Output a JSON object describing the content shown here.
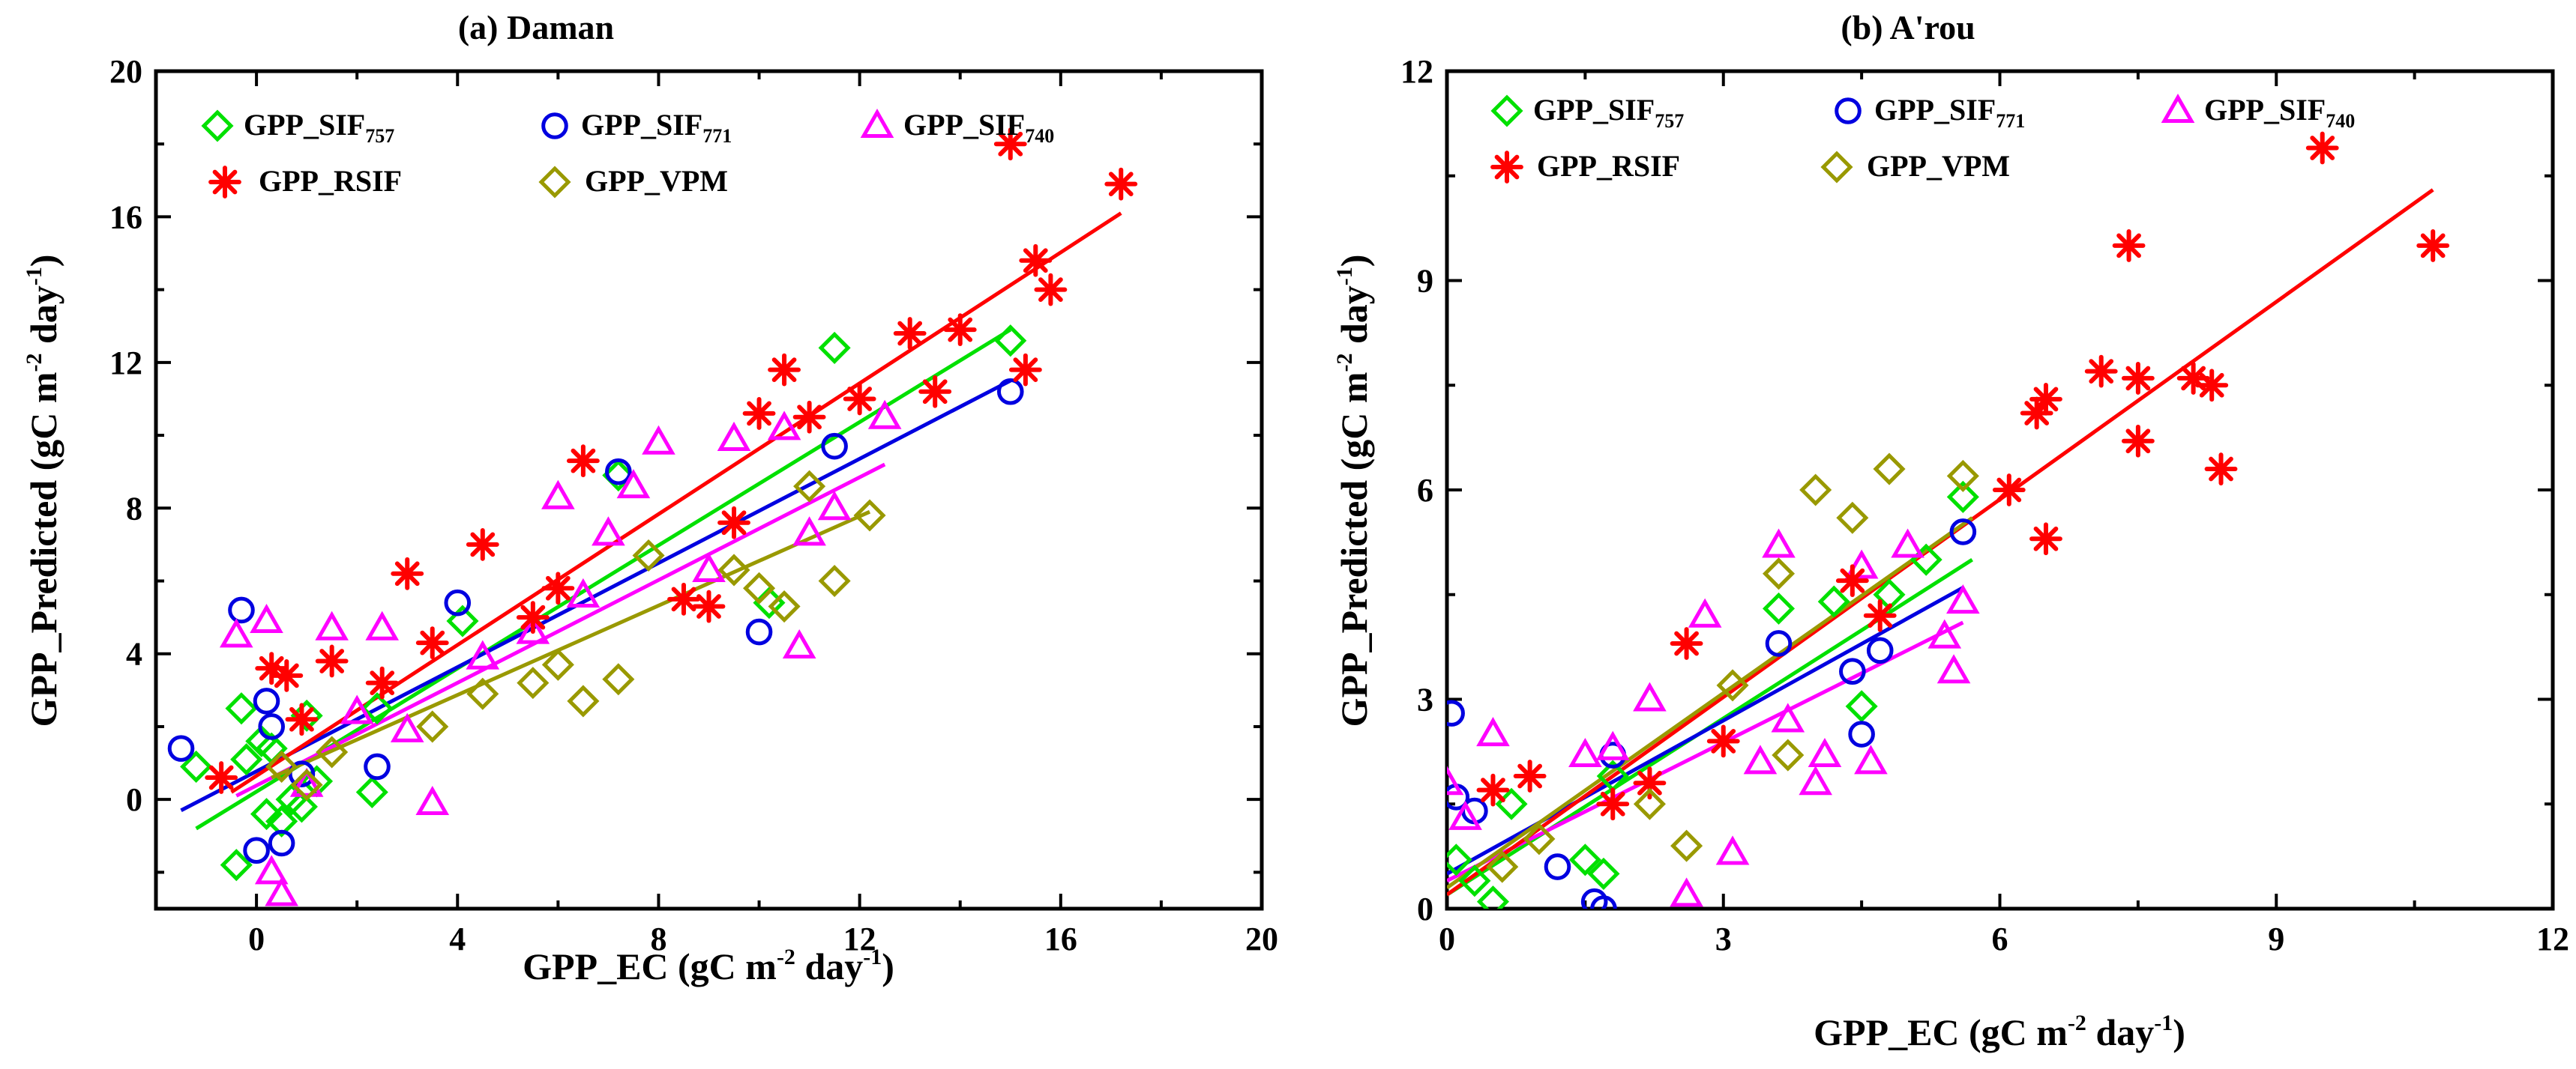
{
  "chart_data": [
    {
      "type": "scatter",
      "title": "(a) Daman",
      "xlabel_parts": [
        "GPP_EC (gC m",
        "-2",
        " day",
        "-1",
        ")"
      ],
      "ylabel_parts": [
        "GPP_Predicted (gC m",
        "-2",
        " day",
        "-1",
        ")"
      ],
      "xlim": [
        -2,
        20
      ],
      "ylim": [
        -3,
        20
      ],
      "xticks": [
        0,
        4,
        8,
        12,
        16,
        20
      ],
      "yticks": [
        0,
        4,
        8,
        12,
        16,
        20
      ],
      "series": [
        {
          "name": "GPP_SIF",
          "name_sub": "757",
          "color": "#00e000",
          "marker": "diamond",
          "x": [
            -1.2,
            -0.4,
            -0.3,
            -0.2,
            0.1,
            0.2,
            0.3,
            0.5,
            0.7,
            0.9,
            1.0,
            1.2,
            2.3,
            2.4,
            4.1,
            7.2,
            10.2,
            11.5,
            15.0
          ],
          "y": [
            0.9,
            -1.8,
            2.5,
            1.1,
            1.6,
            -0.4,
            1.4,
            -0.6,
            0.0,
            -0.2,
            2.3,
            0.5,
            0.2,
            2.5,
            4.9,
            8.9,
            5.4,
            12.4,
            12.6
          ],
          "fit": [
            -1.2,
            -0.8,
            15.0,
            12.9
          ]
        },
        {
          "name": "GPP_SIF",
          "name_sub": "771",
          "color": "#0000e0",
          "marker": "circle",
          "x": [
            -1.5,
            -0.3,
            0.0,
            0.2,
            0.3,
            0.5,
            0.9,
            2.4,
            4.0,
            7.2,
            10.0,
            11.5,
            15.0
          ],
          "y": [
            1.4,
            5.2,
            -1.4,
            2.7,
            2.0,
            -1.2,
            0.7,
            0.9,
            5.4,
            9.0,
            4.6,
            9.7,
            11.2
          ],
          "fit": [
            -1.5,
            -0.3,
            15.0,
            11.5
          ]
        },
        {
          "name": "GPP_SIF",
          "name_sub": "740",
          "color": "#ff00ff",
          "marker": "triangle",
          "x": [
            -0.4,
            0.2,
            0.3,
            0.5,
            1.0,
            1.5,
            2.0,
            2.5,
            3.0,
            3.5,
            4.5,
            5.5,
            6.0,
            6.5,
            7.0,
            7.5,
            8.0,
            9.0,
            9.5,
            10.5,
            10.8,
            11.0,
            11.5,
            12.5
          ],
          "y": [
            4.5,
            4.9,
            -2.0,
            -2.6,
            0.4,
            4.7,
            2.4,
            4.7,
            1.9,
            -0.1,
            3.9,
            4.6,
            8.3,
            5.6,
            7.3,
            8.6,
            9.8,
            6.3,
            9.9,
            10.2,
            4.2,
            7.3,
            8.0,
            10.5
          ],
          "fit": [
            -0.4,
            0.1,
            12.5,
            9.2
          ]
        },
        {
          "name": "GPP_RSIF",
          "name_sub": "",
          "color": "#ff0000",
          "marker": "asterisk",
          "x": [
            -0.7,
            0.3,
            0.6,
            0.9,
            1.5,
            2.5,
            3.0,
            3.5,
            4.5,
            5.5,
            6.0,
            6.5,
            8.5,
            9.0,
            9.5,
            10.0,
            10.5,
            11.0,
            12.0,
            13.0,
            13.5,
            14.0,
            15.0,
            15.3,
            15.5,
            15.8,
            17.2
          ],
          "y": [
            0.6,
            3.6,
            3.4,
            2.2,
            3.8,
            3.2,
            6.2,
            4.3,
            7.0,
            5.0,
            5.8,
            9.3,
            5.5,
            5.3,
            7.6,
            10.6,
            11.8,
            10.5,
            11.0,
            12.8,
            11.2,
            12.9,
            18.0,
            11.8,
            14.8,
            14.0,
            16.9
          ],
          "fit": [
            -0.5,
            0.2,
            17.2,
            16.1
          ]
        },
        {
          "name": "GPP_VPM",
          "name_sub": "",
          "color": "#999900",
          "marker": "diamond",
          "x": [
            0.5,
            1.0,
            1.5,
            3.5,
            4.5,
            5.5,
            6.0,
            6.5,
            7.2,
            7.8,
            9.5,
            10.0,
            10.5,
            11.0,
            11.5,
            12.2
          ],
          "y": [
            0.9,
            0.4,
            1.3,
            2.0,
            2.9,
            3.2,
            3.7,
            2.7,
            3.3,
            6.7,
            6.3,
            5.8,
            5.3,
            8.6,
            6.0,
            7.8
          ],
          "fit": [
            0.3,
            0.6,
            12.2,
            7.9
          ]
        }
      ]
    },
    {
      "type": "scatter",
      "title": "(b) A'rou",
      "xlabel_parts": [
        "GPP_EC (gC m",
        "-2",
        " day",
        "-1",
        ")"
      ],
      "ylabel_parts": [
        "GPP_Predicted (gC m",
        "-2",
        " day",
        "-1",
        ")"
      ],
      "xlim": [
        0,
        12
      ],
      "ylim": [
        0,
        12
      ],
      "xticks": [
        0,
        3,
        6,
        9,
        12
      ],
      "yticks": [
        0,
        3,
        6,
        9,
        12
      ],
      "series": [
        {
          "name": "GPP_SIF",
          "name_sub": "757",
          "color": "#00e000",
          "marker": "diamond",
          "x": [
            0.1,
            0.3,
            0.5,
            0.7,
            1.5,
            1.7,
            1.8,
            3.6,
            4.2,
            4.5,
            4.8,
            5.2,
            5.6
          ],
          "y": [
            0.7,
            0.4,
            0.1,
            1.5,
            0.7,
            0.5,
            1.9,
            4.3,
            4.4,
            2.9,
            4.5,
            5.0,
            5.9
          ],
          "fit": [
            0.0,
            0.2,
            5.7,
            5.0
          ]
        },
        {
          "name": "GPP_SIF",
          "name_sub": "771",
          "color": "#0000e0",
          "marker": "circle",
          "x": [
            0.05,
            0.1,
            0.3,
            1.2,
            1.6,
            1.7,
            1.8,
            3.6,
            4.4,
            4.5,
            4.7,
            5.6
          ],
          "y": [
            2.8,
            1.6,
            1.4,
            0.6,
            0.1,
            0.0,
            2.2,
            3.8,
            3.4,
            2.5,
            3.7,
            5.4
          ],
          "fit": [
            0.0,
            0.5,
            5.6,
            4.6
          ]
        },
        {
          "name": "GPP_SIF",
          "name_sub": "740",
          "color": "#ff00ff",
          "marker": "triangle",
          "x": [
            0.0,
            0.2,
            0.5,
            1.5,
            1.8,
            2.2,
            2.6,
            2.8,
            3.1,
            3.4,
            3.6,
            3.7,
            4.0,
            4.1,
            4.5,
            4.6,
            5.0,
            5.4,
            5.5,
            5.6
          ],
          "y": [
            1.8,
            1.3,
            2.5,
            2.2,
            2.3,
            3.0,
            0.2,
            4.2,
            0.8,
            2.1,
            5.2,
            2.7,
            1.8,
            2.2,
            4.9,
            2.1,
            5.2,
            3.9,
            3.4,
            4.4
          ],
          "fit": [
            0.0,
            0.4,
            5.6,
            4.1
          ]
        },
        {
          "name": "GPP_RSIF",
          "name_sub": "",
          "color": "#ff0000",
          "marker": "asterisk",
          "x": [
            0.5,
            0.9,
            1.8,
            2.2,
            2.6,
            3.0,
            4.4,
            4.7,
            6.1,
            6.4,
            6.5,
            6.5,
            7.1,
            7.4,
            7.5,
            7.5,
            8.1,
            8.3,
            8.4,
            9.5,
            10.7
          ],
          "y": [
            1.7,
            1.9,
            1.5,
            1.8,
            3.8,
            2.4,
            4.7,
            4.2,
            6.0,
            7.1,
            7.3,
            5.3,
            7.7,
            9.5,
            7.6,
            6.7,
            7.6,
            7.5,
            6.3,
            10.9,
            9.5
          ],
          "fit": [
            0.0,
            0.2,
            10.7,
            10.3
          ]
        },
        {
          "name": "GPP_VPM",
          "name_sub": "",
          "color": "#999900",
          "marker": "diamond",
          "x": [
            0.6,
            1.0,
            2.2,
            2.6,
            3.1,
            3.6,
            3.7,
            4.0,
            4.4,
            4.8,
            5.6
          ],
          "y": [
            0.6,
            1.0,
            1.5,
            0.9,
            3.2,
            4.8,
            2.2,
            6.0,
            5.6,
            6.3,
            6.2
          ],
          "fit": [
            0.0,
            0.3,
            5.7,
            5.6
          ]
        }
      ]
    }
  ]
}
